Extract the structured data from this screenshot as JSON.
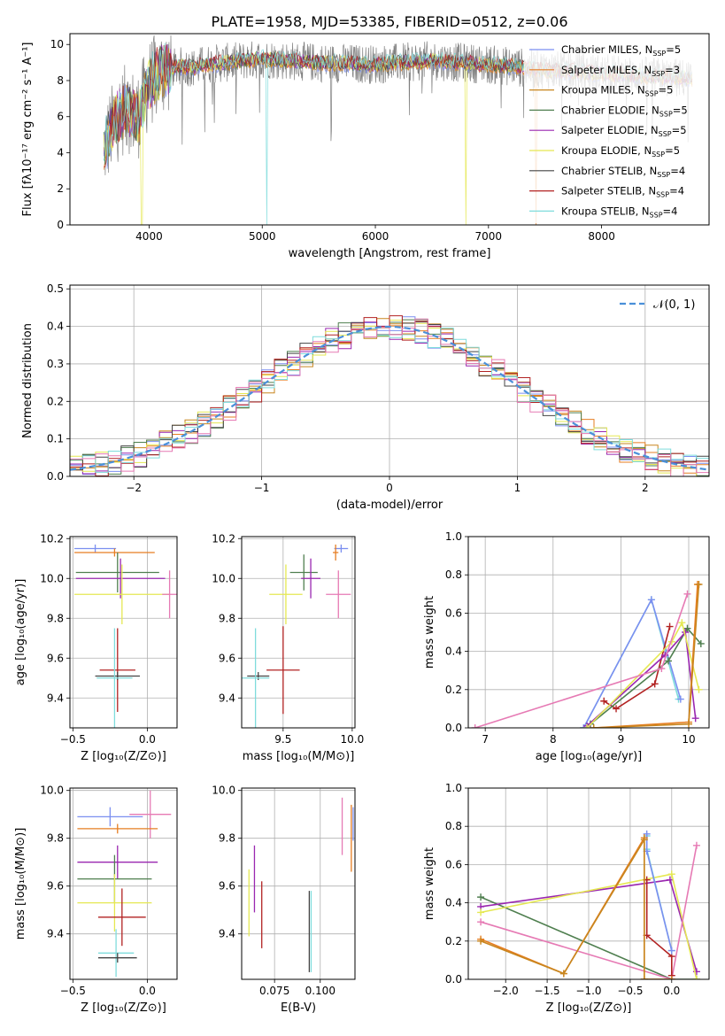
{
  "figure": {
    "title": "PLATE=1958, MJD=53385, FIBERID=0512, z=0.06"
  },
  "colors": {
    "Chabrier MILES": "#7b8ff0",
    "Salpeter MILES": "#e67e22",
    "Kroupa MILES": "#c8861e",
    "Chabrier ELODIE": "#4f7f4f",
    "Salpeter ELODIE": "#9a27b0",
    "Kroupa ELODIE": "#e5e852",
    "Chabrier STELIB": "#444444",
    "Salpeter STELIB": "#b22222",
    "Kroupa STELIB": "#7fdcdc",
    "data": "#808080",
    "pink": "#e67ab4",
    "gaussian": "#4a90d9"
  },
  "legend_spectrum": [
    {
      "label": "Chabrier MILES, N",
      "sub": "SSP",
      "suffix": "=5",
      "color": "#7b8ff0"
    },
    {
      "label": "Salpeter MILES, N",
      "sub": "SSP",
      "suffix": "=3",
      "color": "#e67e22"
    },
    {
      "label": "Kroupa MILES, N",
      "sub": "SSP",
      "suffix": "=5",
      "color": "#c8861e"
    },
    {
      "label": "Chabrier ELODIE, N",
      "sub": "SSP",
      "suffix": "=5",
      "color": "#4f7f4f"
    },
    {
      "label": "Salpeter ELODIE, N",
      "sub": "SSP",
      "suffix": "=5",
      "color": "#9a27b0"
    },
    {
      "label": "Kroupa ELODIE, N",
      "sub": "SSP",
      "suffix": "=5",
      "color": "#e5e852"
    },
    {
      "label": "Chabrier STELIB, N",
      "sub": "SSP",
      "suffix": "=4",
      "color": "#444444"
    },
    {
      "label": "Salpeter STELIB, N",
      "sub": "SSP",
      "suffix": "=4",
      "color": "#b22222"
    },
    {
      "label": "Kroupa STELIB, N",
      "sub": "SSP",
      "suffix": "=4",
      "color": "#7fdcdc"
    }
  ],
  "chart_data": [
    {
      "type": "line",
      "id": "spectrum",
      "title": "PLATE=1958, MJD=53385, FIBERID=0512, z=0.06",
      "xlabel": "wavelength [Angstrom, rest frame]",
      "ylabel": "Flux [fλ10⁻¹⁷ erg cm⁻² s⁻¹ A⁻¹]",
      "xlim": [
        3300,
        8950
      ],
      "ylim": [
        0,
        10.6
      ],
      "xticks": [
        4000,
        5000,
        6000,
        7000,
        8000
      ],
      "yticks": [
        0,
        2,
        4,
        6,
        8,
        10
      ],
      "continuum": {
        "x": [
          3600,
          3700,
          3800,
          3900,
          4000,
          4100,
          4200,
          4300,
          4400,
          4500,
          4700,
          5000,
          5500,
          6000,
          6500,
          7000,
          7500,
          8000,
          8500,
          8800
        ],
        "y": [
          4.2,
          5.8,
          6.5,
          6.0,
          7.8,
          8.5,
          8.7,
          8.8,
          8.7,
          8.9,
          9.0,
          9.2,
          9.0,
          8.9,
          9.1,
          8.9,
          8.6,
          8.4,
          8.2,
          8.1
        ]
      },
      "spikes": [
        {
          "x": 3935,
          "y": 0.0
        },
        {
          "x": 5040,
          "y": 0.0
        },
        {
          "x": 6800,
          "y": 0.0
        },
        {
          "x": 7420,
          "y": 0.0
        }
      ],
      "grid": false,
      "legend_position": "right"
    },
    {
      "type": "bar",
      "id": "residuals",
      "xlabel": "(data-model)/error",
      "ylabel": "Normed distribution",
      "xlim": [
        -2.5,
        2.5
      ],
      "ylim": [
        0,
        0.51
      ],
      "xticks": [
        -2,
        -1,
        0,
        1,
        2
      ],
      "xticklabels": [
        "−2",
        "−1",
        "0",
        "1",
        "2"
      ],
      "yticks": [
        0.0,
        0.1,
        0.2,
        0.3,
        0.4,
        0.5
      ],
      "bin_width": 0.1,
      "gaussian_label": "𝒩(0, 1)",
      "grid": true,
      "legend_position": "top-right"
    },
    {
      "type": "scatter",
      "id": "age-vs-Z",
      "xlabel": "Z [log₁₀(Z/Z⊙)]",
      "ylabel": "age  [log₁₀(age/yr)]",
      "xlim": [
        -0.52,
        0.2
      ],
      "ylim": [
        9.25,
        10.21
      ],
      "xticks": [
        -0.5,
        0.0
      ],
      "xticklabels": [
        "−0.5",
        "0.0"
      ],
      "yticks": [
        9.4,
        9.6,
        9.8,
        10.0,
        10.2
      ],
      "points": [
        {
          "name": "Chabrier MILES",
          "x": -0.35,
          "xerr": 0.14,
          "y": 10.15,
          "yerr": 0.02
        },
        {
          "name": "Salpeter MILES",
          "x": -0.22,
          "xerr": 0.27,
          "y": 10.13,
          "yerr": 0.02
        },
        {
          "name": "Chabrier ELODIE",
          "x": -0.2,
          "xerr": 0.28,
          "y": 10.03,
          "yerr": 0.1
        },
        {
          "name": "Salpeter ELODIE",
          "x": -0.18,
          "xerr": 0.3,
          "y": 10.0,
          "yerr": 0.1
        },
        {
          "name": "Kroupa ELODIE",
          "x": -0.17,
          "xerr": 0.32,
          "y": 9.92,
          "yerr": 0.15
        },
        {
          "name": "pink",
          "x": 0.15,
          "xerr": 0.05,
          "y": 9.92,
          "yerr": 0.12
        },
        {
          "name": "Salpeter STELIB",
          "x": -0.2,
          "xerr": 0.12,
          "y": 9.54,
          "yerr": 0.21
        },
        {
          "name": "Chabrier STELIB",
          "x": -0.2,
          "xerr": 0.15,
          "y": 9.51,
          "yerr": 0.02
        },
        {
          "name": "Kroupa STELIB",
          "x": -0.22,
          "xerr": 0.12,
          "y": 9.5,
          "yerr": 0.25
        }
      ]
    },
    {
      "type": "scatter",
      "id": "age-vs-mass",
      "xlabel": "mass [log₁₀(M/M⊙)]",
      "ylabel": "",
      "xlim": [
        9.2,
        10.02
      ],
      "ylim": [
        9.25,
        10.21
      ],
      "xticks": [
        9.5,
        10.0
      ],
      "xticklabels": [
        "9.5",
        "10.0"
      ],
      "yticks": [
        9.4,
        9.6,
        9.8,
        10.0,
        10.2
      ],
      "points": [
        {
          "name": "Chabrier MILES",
          "x": 9.92,
          "xerr": 0.05,
          "y": 10.15,
          "yerr": 0.02
        },
        {
          "name": "Salpeter MILES",
          "x": 9.88,
          "xerr": 0.02,
          "y": 10.13,
          "yerr": 0.04
        },
        {
          "name": "Chabrier ELODIE",
          "x": 9.65,
          "xerr": 0.1,
          "y": 10.03,
          "yerr": 0.09
        },
        {
          "name": "Salpeter ELODIE",
          "x": 9.7,
          "xerr": 0.07,
          "y": 10.0,
          "yerr": 0.1
        },
        {
          "name": "Kroupa ELODIE",
          "x": 9.52,
          "xerr": 0.12,
          "y": 9.92,
          "yerr": 0.15
        },
        {
          "name": "pink",
          "x": 9.9,
          "xerr": 0.09,
          "y": 9.92,
          "yerr": 0.12
        },
        {
          "name": "Salpeter STELIB",
          "x": 9.5,
          "xerr": 0.12,
          "y": 9.54,
          "yerr": 0.22
        },
        {
          "name": "Chabrier STELIB",
          "x": 9.32,
          "xerr": 0.08,
          "y": 9.51,
          "yerr": 0.02
        },
        {
          "name": "Kroupa STELIB",
          "x": 9.3,
          "xerr": 0.1,
          "y": 9.5,
          "yerr": 0.25
        }
      ]
    },
    {
      "type": "line",
      "id": "mass-weight-vs-age",
      "xlabel": "age  [log₁₀(age/yr)]",
      "ylabel": "mass weight",
      "xlim": [
        6.75,
        10.3
      ],
      "ylim": [
        0,
        1.0
      ],
      "xticks": [
        7,
        8,
        9,
        10
      ],
      "yticks": [
        0.0,
        0.2,
        0.4,
        0.6,
        0.8,
        1.0
      ],
      "series": [
        {
          "key": "Kroupa STELIB",
          "x": [
            8.45,
            9.45,
            9.85
          ],
          "y": [
            0.0,
            0.67,
            0.15
          ]
        },
        {
          "key": "Chabrier MILES",
          "x": [
            8.45,
            9.45,
            9.88
          ],
          "y": [
            0.0,
            0.67,
            0.15
          ]
        },
        {
          "key": "Salpeter STELIB",
          "x": [
            8.75,
            8.93,
            9.5,
            9.72
          ],
          "y": [
            0.14,
            0.1,
            0.23,
            0.53
          ]
        },
        {
          "key": "Chabrier ELODIE",
          "x": [
            8.55,
            9.7,
            9.98,
            10.18
          ],
          "y": [
            0.02,
            0.35,
            0.52,
            0.44
          ]
        },
        {
          "key": "Salpeter ELODIE",
          "x": [
            8.5,
            9.65,
            9.95,
            10.1
          ],
          "y": [
            0.01,
            0.38,
            0.5,
            0.05
          ]
        },
        {
          "key": "Kroupa ELODIE",
          "x": [
            8.5,
            9.75,
            9.9,
            10.15
          ],
          "y": [
            0.0,
            0.45,
            0.55,
            0.2
          ]
        },
        {
          "key": "pink",
          "x": [
            6.85,
            9.6,
            9.98
          ],
          "y": [
            0.0,
            0.31,
            0.7
          ]
        },
        {
          "key": "Salpeter MILES",
          "x": [
            8.6,
            10.0,
            10.13
          ],
          "y": [
            0.0,
            0.03,
            0.75
          ]
        },
        {
          "key": "Kroupa MILES",
          "x": [
            8.6,
            10.0,
            10.15
          ],
          "y": [
            0.0,
            0.02,
            0.75
          ]
        }
      ]
    },
    {
      "type": "scatter",
      "id": "mass-vs-Z",
      "xlabel": "Z [log₁₀(Z/Z⊙)]",
      "ylabel": "mass [log₁₀(M/M⊙)]",
      "xlim": [
        -0.52,
        0.2
      ],
      "ylim": [
        9.21,
        10.01
      ],
      "xticks": [
        -0.5,
        0.0
      ],
      "xticklabels": [
        "−0.5",
        "0.0"
      ],
      "yticks": [
        9.4,
        9.6,
        9.8,
        10.0
      ],
      "points": [
        {
          "name": "pink",
          "x": 0.02,
          "xerr": 0.14,
          "y": 9.9,
          "yerr": 0.1
        },
        {
          "name": "Chabrier MILES",
          "x": -0.25,
          "xerr": 0.22,
          "y": 9.89,
          "yerr": 0.04
        },
        {
          "name": "Salpeter MILES",
          "x": -0.2,
          "xerr": 0.27,
          "y": 9.84,
          "yerr": 0.02
        },
        {
          "name": "Salpeter ELODIE",
          "x": -0.2,
          "xerr": 0.27,
          "y": 9.7,
          "yerr": 0.07
        },
        {
          "name": "Chabrier ELODIE",
          "x": -0.22,
          "xerr": 0.25,
          "y": 9.63,
          "yerr": 0.1
        },
        {
          "name": "Kroupa ELODIE",
          "x": -0.22,
          "xerr": 0.25,
          "y": 9.53,
          "yerr": 0.12
        },
        {
          "name": "Salpeter STELIB",
          "x": -0.17,
          "xerr": 0.16,
          "y": 9.47,
          "yerr": 0.12
        },
        {
          "name": "Kroupa STELIB",
          "x": -0.21,
          "xerr": 0.12,
          "y": 9.32,
          "yerr": 0.1
        },
        {
          "name": "Chabrier STELIB",
          "x": -0.2,
          "xerr": 0.13,
          "y": 9.3,
          "yerr": 0.02
        }
      ]
    },
    {
      "type": "scatter",
      "id": "mass-vs-EBV",
      "xlabel": "E(B-V)",
      "ylabel": "",
      "xlim": [
        0.057,
        0.119
      ],
      "ylim": [
        9.21,
        10.01
      ],
      "xticks": [
        0.075,
        0.1
      ],
      "xticklabels": [
        "0.075",
        "0.100"
      ],
      "yticks": [
        9.4,
        9.6,
        9.8,
        10.0
      ],
      "points": [
        {
          "name": "Kroupa ELODIE",
          "x": 0.061,
          "y": 9.53,
          "yerr": 0.14
        },
        {
          "name": "Salpeter ELODIE",
          "x": 0.064,
          "y": 9.63,
          "yerr": 0.14
        },
        {
          "name": "Salpeter STELIB",
          "x": 0.068,
          "y": 9.48,
          "yerr": 0.14
        },
        {
          "name": "Chabrier STELIB",
          "x": 0.094,
          "y": 9.41,
          "yerr": 0.17
        },
        {
          "name": "Kroupa STELIB",
          "x": 0.095,
          "y": 9.41,
          "yerr": 0.17
        },
        {
          "name": "pink",
          "x": 0.112,
          "y": 9.85,
          "yerr": 0.12
        },
        {
          "name": "Salpeter MILES",
          "x": 0.117,
          "y": 9.8,
          "yerr": 0.14
        },
        {
          "name": "Chabrier MILES",
          "x": 0.118,
          "y": 9.86,
          "yerr": 0.07
        }
      ]
    },
    {
      "type": "line",
      "id": "mass-weight-vs-Z",
      "xlabel": "Z [log₁₀(Z/Z⊙)]",
      "ylabel": "mass weight",
      "xlim": [
        -2.45,
        0.45
      ],
      "ylim": [
        0,
        1.0
      ],
      "xticks": [
        -2.0,
        -1.5,
        -1.0,
        -0.5,
        0.0
      ],
      "xticklabels": [
        "−2.0",
        "−1.5",
        "−1.0",
        "−0.5",
        "0.0"
      ],
      "yticks": [
        0.0,
        0.2,
        0.4,
        0.6,
        0.8,
        1.0
      ],
      "series": [
        {
          "key": "Chabrier ELODIE",
          "x": [
            -2.3,
            0.0,
            0.3
          ],
          "y": [
            0.43,
            0.0,
            0.0
          ]
        },
        {
          "key": "Salpeter ELODIE",
          "x": [
            -2.3,
            -0.02,
            0.3
          ],
          "y": [
            0.38,
            0.52,
            0.04
          ]
        },
        {
          "key": "Kroupa ELODIE",
          "x": [
            -2.3,
            0.0,
            0.3
          ],
          "y": [
            0.35,
            0.55,
            0.0
          ]
        },
        {
          "key": "pink",
          "x": [
            -2.3,
            0.0,
            0.3
          ],
          "y": [
            0.3,
            0.0,
            0.7
          ]
        },
        {
          "key": "Salpeter STELIB",
          "x": [
            -0.3,
            -0.3,
            0.0,
            0.0
          ],
          "y": [
            0.52,
            0.23,
            0.12,
            0.02
          ]
        },
        {
          "key": "Kroupa STELIB",
          "x": [
            -0.3,
            -0.3,
            0.0
          ],
          "y": [
            0.75,
            0.68,
            0.15
          ]
        },
        {
          "key": "Chabrier MILES",
          "x": [
            -0.3,
            -0.3,
            0.0
          ],
          "y": [
            0.76,
            0.67,
            0.15
          ]
        },
        {
          "key": "Salpeter MILES",
          "x": [
            -2.3,
            -1.3,
            -0.33,
            -0.33,
            0.0
          ],
          "y": [
            0.21,
            0.03,
            0.74,
            0.0,
            0.0
          ]
        },
        {
          "key": "Kroupa MILES",
          "x": [
            -2.3,
            -1.3,
            -0.33,
            -0.33,
            0.0
          ],
          "y": [
            0.2,
            0.03,
            0.73,
            0.0,
            0.0
          ]
        }
      ]
    }
  ]
}
